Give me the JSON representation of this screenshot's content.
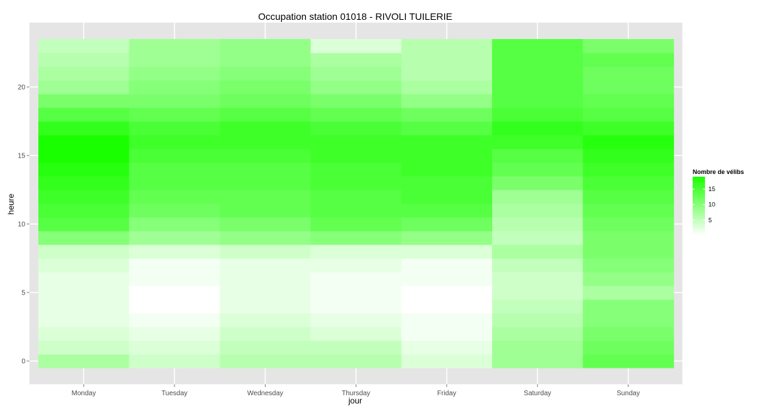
{
  "chart_data": {
    "type": "heatmap",
    "title": "Occupation station 01018 - RIVOLI TUILERIE",
    "xlabel": "jour",
    "ylabel": "heure",
    "categories": [
      "Monday",
      "Tuesday",
      "Wednesday",
      "Thursday",
      "Friday",
      "Saturday",
      "Sunday"
    ],
    "y": [
      0,
      1,
      2,
      3,
      4,
      5,
      6,
      7,
      8,
      9,
      10,
      11,
      12,
      13,
      14,
      15,
      16,
      17,
      18,
      19,
      20,
      21,
      22,
      23
    ],
    "yticks": [
      0,
      5,
      10,
      15,
      20
    ],
    "ylim": [
      -0.5,
      23.5
    ],
    "values": [
      [
        7,
        4,
        6,
        6,
        3,
        8,
        13
      ],
      [
        4,
        3,
        5,
        5,
        2,
        8,
        12
      ],
      [
        3,
        2,
        4,
        3,
        1,
        7,
        11
      ],
      [
        2,
        1,
        3,
        2,
        1,
        6,
        10
      ],
      [
        2,
        0,
        2,
        1,
        0,
        5,
        10
      ],
      [
        2,
        0,
        2,
        1,
        0,
        4,
        7
      ],
      [
        2,
        1,
        2,
        1,
        1,
        4,
        9
      ],
      [
        3,
        1,
        2,
        2,
        1,
        5,
        10
      ],
      [
        4,
        3,
        4,
        3,
        3,
        7,
        11
      ],
      [
        10,
        8,
        9,
        10,
        9,
        5,
        11
      ],
      [
        14,
        10,
        11,
        13,
        12,
        6,
        12
      ],
      [
        15,
        12,
        13,
        14,
        14,
        7,
        13
      ],
      [
        16,
        13,
        13,
        14,
        15,
        8,
        14
      ],
      [
        17,
        14,
        14,
        15,
        15,
        11,
        15
      ],
      [
        18,
        14,
        14,
        15,
        16,
        13,
        16
      ],
      [
        19,
        15,
        15,
        16,
        16,
        14,
        17
      ],
      [
        19,
        16,
        16,
        16,
        16,
        16,
        18
      ],
      [
        17,
        15,
        16,
        15,
        14,
        17,
        16
      ],
      [
        14,
        13,
        14,
        13,
        12,
        15,
        14
      ],
      [
        11,
        11,
        12,
        11,
        9,
        14,
        13
      ],
      [
        8,
        10,
        11,
        9,
        7,
        14,
        12
      ],
      [
        7,
        9,
        10,
        8,
        6,
        14,
        12
      ],
      [
        6,
        8,
        9,
        7,
        6,
        14,
        13
      ],
      [
        5,
        8,
        9,
        3,
        6,
        14,
        11
      ]
    ],
    "color_low": "#ffffff",
    "color_high": "#1aff00",
    "value_min": 0,
    "value_max": 19,
    "grid": true,
    "panel_background": "#e5e5e5",
    "legend": {
      "title": "Nombre de vélibs",
      "position": "right",
      "ticks": [
        5,
        10,
        15
      ]
    }
  }
}
